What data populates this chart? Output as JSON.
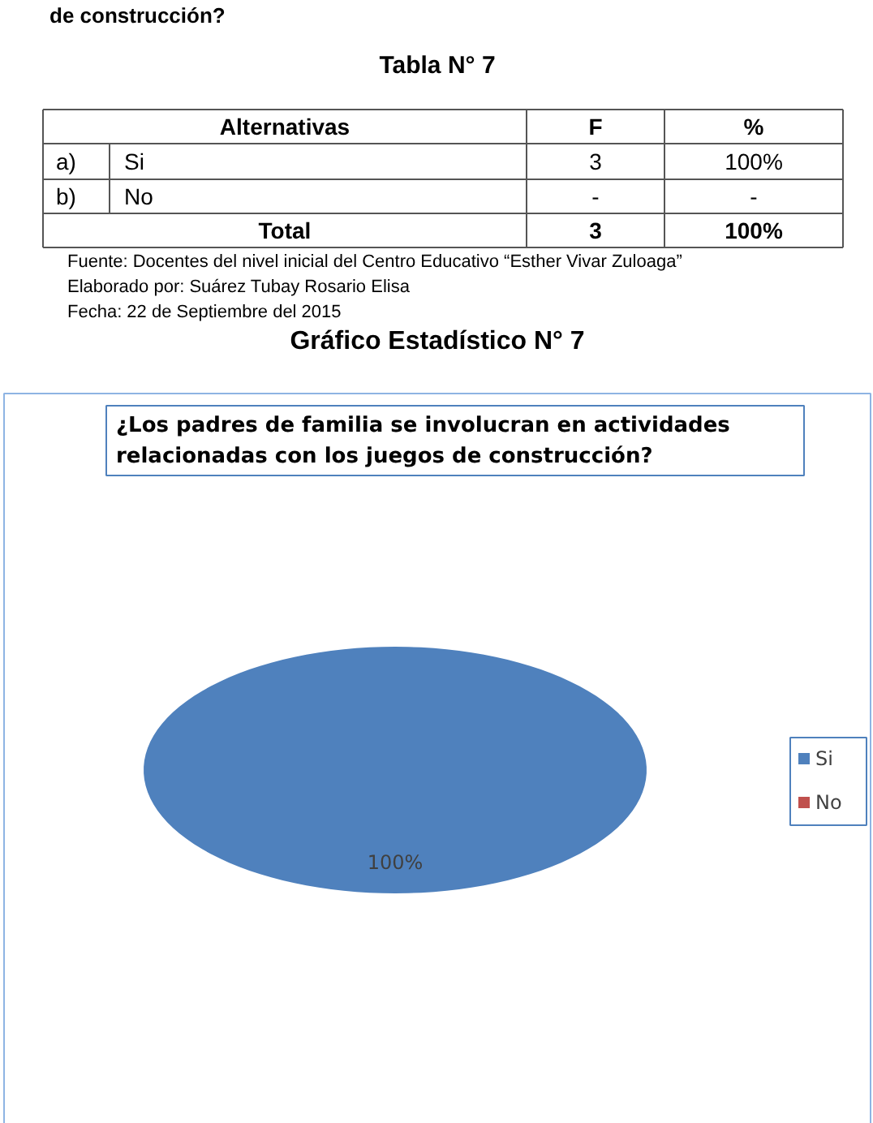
{
  "chart_data": {
    "type": "pie",
    "title": "Gráfico Estadístico N° 7",
    "subtitle": "¿Los padres de familia se involucran en actividades relacionadas con los juegos de construcción?",
    "categories": [
      "Si",
      "No"
    ],
    "values": [
      100,
      0
    ],
    "colors": [
      "#4f81bd",
      "#c0504d"
    ],
    "value_labels": [
      "100%",
      null
    ],
    "legend": "right",
    "annotations": [
      "de construcción?",
      "Tabla N° 7",
      "Alternativas",
      "F",
      "%",
      "a)",
      "3",
      "100%",
      "b)",
      "-",
      "-",
      "Total",
      "3",
      "100%",
      "Fuente: Docentes del nivel inicial del  Centro Educativo “Esther Vivar Zuloaga”",
      "Elaborado por: Suárez Tubay Rosario Elisa",
      "Fecha: 22 de Septiembre del 2015"
    ]
  }
}
